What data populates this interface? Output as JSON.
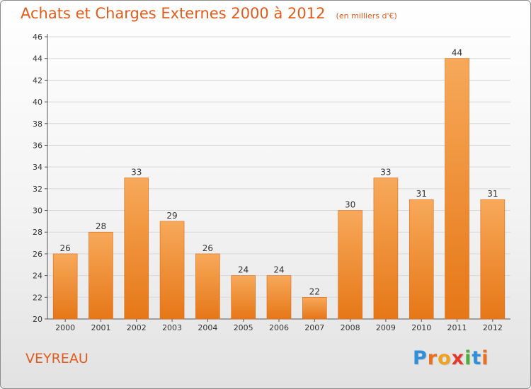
{
  "title": "Achats et Charges Externes 2000 à 2012",
  "unit": "(en milliers d'€)",
  "city": "VEYREAU",
  "logo": {
    "letters": [
      "P",
      "r",
      "o",
      "x",
      "i",
      "t",
      "i"
    ],
    "colors": [
      "#2f8fd8",
      "#e8701e",
      "#f2a11f",
      "#e23a2a",
      "#4caf3c",
      "#2f8fd8",
      "#e8701e"
    ]
  },
  "colors": {
    "accent": "#e15c1c",
    "bar_light": "#f7a95a",
    "bar_dark": "#e67717",
    "axis": "#555555"
  },
  "chart_data": {
    "type": "bar",
    "title": "Achats et Charges Externes 2000 à 2012",
    "xlabel": "",
    "ylabel": "",
    "categories": [
      "2000",
      "2001",
      "2002",
      "2003",
      "2004",
      "2005",
      "2006",
      "2007",
      "2008",
      "2009",
      "2010",
      "2011",
      "2012"
    ],
    "values": [
      26,
      28,
      33,
      29,
      26,
      24,
      24,
      22,
      30,
      33,
      31,
      44,
      31
    ],
    "ylim": [
      20,
      46
    ],
    "yticks": [
      20,
      22,
      24,
      26,
      28,
      30,
      32,
      34,
      36,
      38,
      40,
      42,
      44,
      46
    ],
    "grid": true,
    "data_labels": true
  }
}
